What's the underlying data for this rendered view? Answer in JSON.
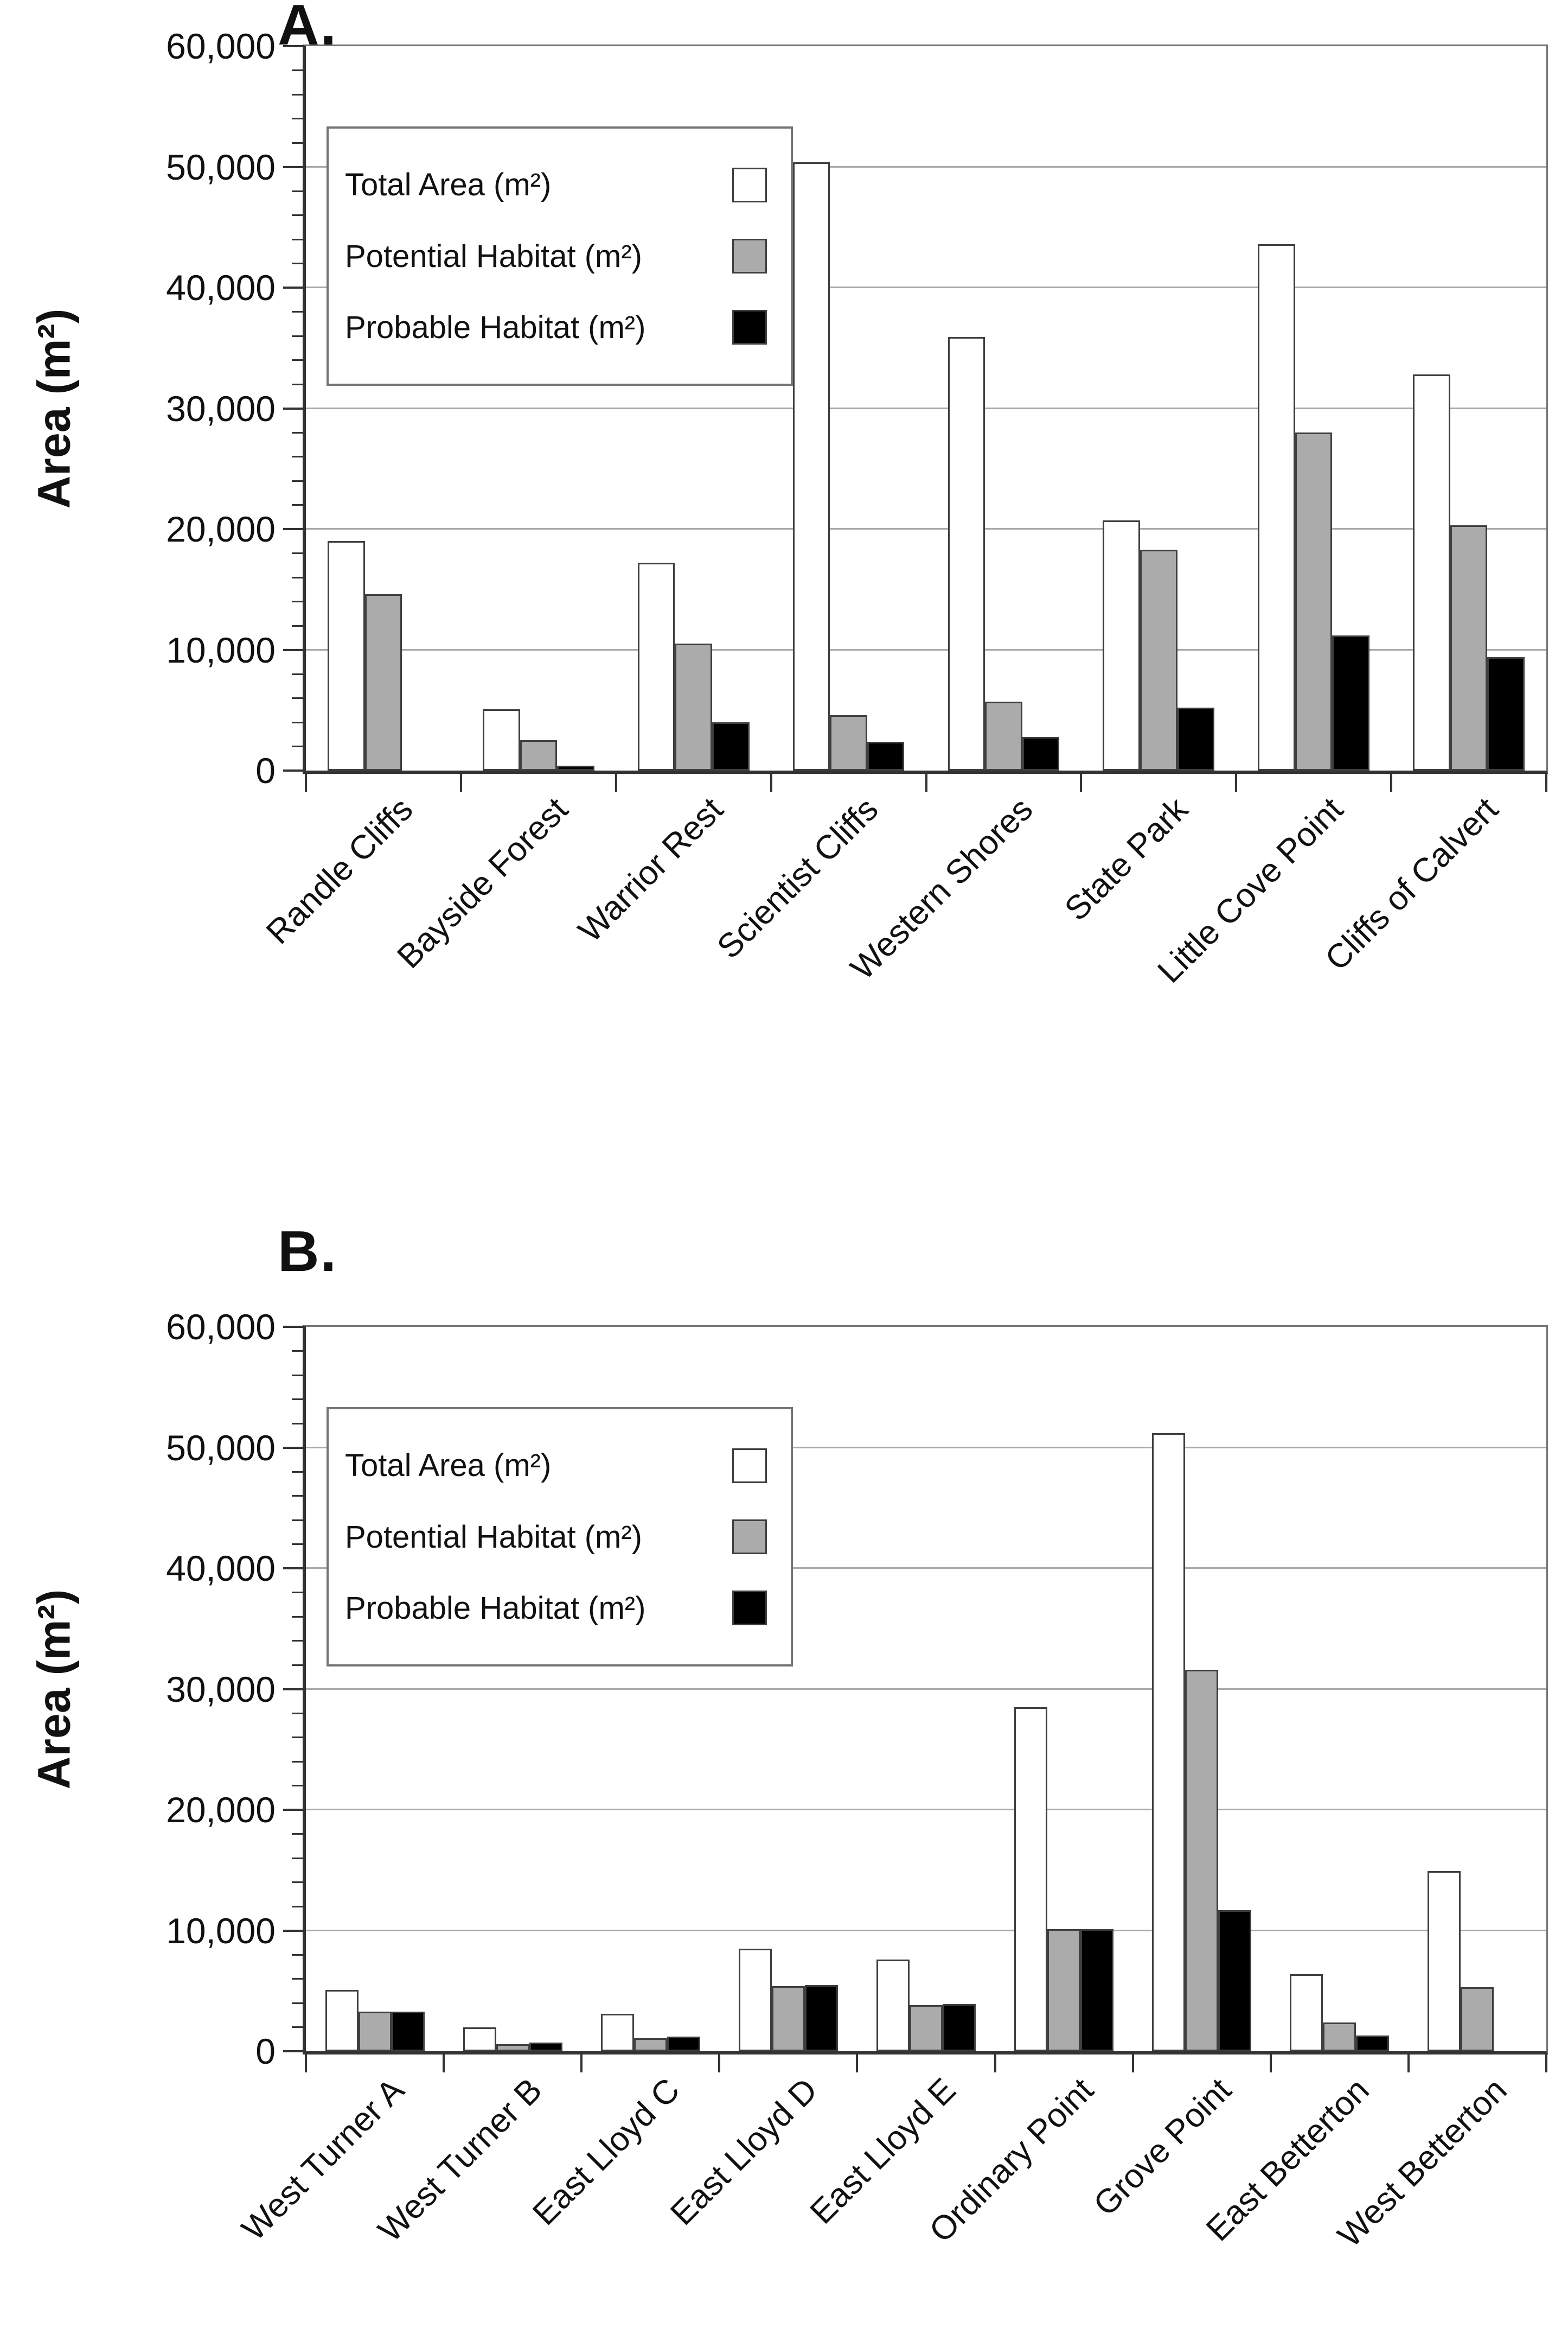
{
  "page": {
    "background": "#ffffff"
  },
  "colors": {
    "total_area_fill": "#ffffff",
    "potential_habitat_fill": "#ababab",
    "probable_habitat_fill": "#000000",
    "bar_outline": "#3f3f3f",
    "gridline": "#a9a9a9",
    "axis": "#333333"
  },
  "chart_data": [
    {
      "type": "bar",
      "panel_label": "A.",
      "ylabel": "Area (m²)",
      "ylim": [
        0,
        60000
      ],
      "ytick_step": 10000,
      "minor_tick_step": 2000,
      "ytick_labels": [
        "0",
        "10,000",
        "20,000",
        "30,000",
        "40,000",
        "50,000",
        "60,000"
      ],
      "grid": true,
      "legend_position": "top-left-inside",
      "categories": [
        "Randle Cliffs",
        "Bayside Forest",
        "Warrior Rest",
        "Scientist Cliffs",
        "Western Shores",
        "State Park",
        "Little Cove Point",
        "Cliffs of Calvert"
      ],
      "series": [
        {
          "key": "total-area",
          "name": "Total Area (m²)",
          "color": "#ffffff",
          "values": [
            19000,
            5100,
            17200,
            50400,
            35900,
            20700,
            43600,
            32800
          ]
        },
        {
          "key": "potential-habitat",
          "name": "Potential Habitat (m²)",
          "color": "#ababab",
          "values": [
            14600,
            2500,
            10500,
            4600,
            5700,
            18300,
            28000,
            20300
          ]
        },
        {
          "key": "probable-habitat",
          "name": "Probable Habitat (m²)",
          "color": "#000000",
          "values": [
            0,
            400,
            4000,
            2400,
            2800,
            5200,
            11200,
            9400
          ]
        }
      ]
    },
    {
      "type": "bar",
      "panel_label": "B.",
      "ylabel": "Area (m²)",
      "ylim": [
        0,
        60000
      ],
      "ytick_step": 10000,
      "minor_tick_step": 2000,
      "ytick_labels": [
        "0",
        "10,000",
        "20,000",
        "30,000",
        "40,000",
        "50,000",
        "60,000"
      ],
      "grid": true,
      "legend_position": "top-left-inside",
      "categories": [
        "West Turner A",
        "West Turner B",
        "East Lloyd C",
        "East Lloyd D",
        "East Lloyd E",
        "Ordinary Point",
        "Grove Point",
        "East Betterton",
        "West Betterton"
      ],
      "series": [
        {
          "key": "total-area",
          "name": "Total Area (m²)",
          "color": "#ffffff",
          "values": [
            5100,
            2000,
            3100,
            8500,
            7600,
            28500,
            51200,
            6400,
            14900
          ]
        },
        {
          "key": "potential-habitat",
          "name": "Potential Habitat (m²)",
          "color": "#ababab",
          "values": [
            3300,
            600,
            1100,
            5400,
            3800,
            10100,
            31600,
            2400,
            5300
          ]
        },
        {
          "key": "probable-habitat",
          "name": "Probable Habitat (m²)",
          "color": "#000000",
          "values": [
            3300,
            700,
            1200,
            5500,
            3900,
            10100,
            11700,
            1300,
            0
          ]
        }
      ]
    }
  ]
}
